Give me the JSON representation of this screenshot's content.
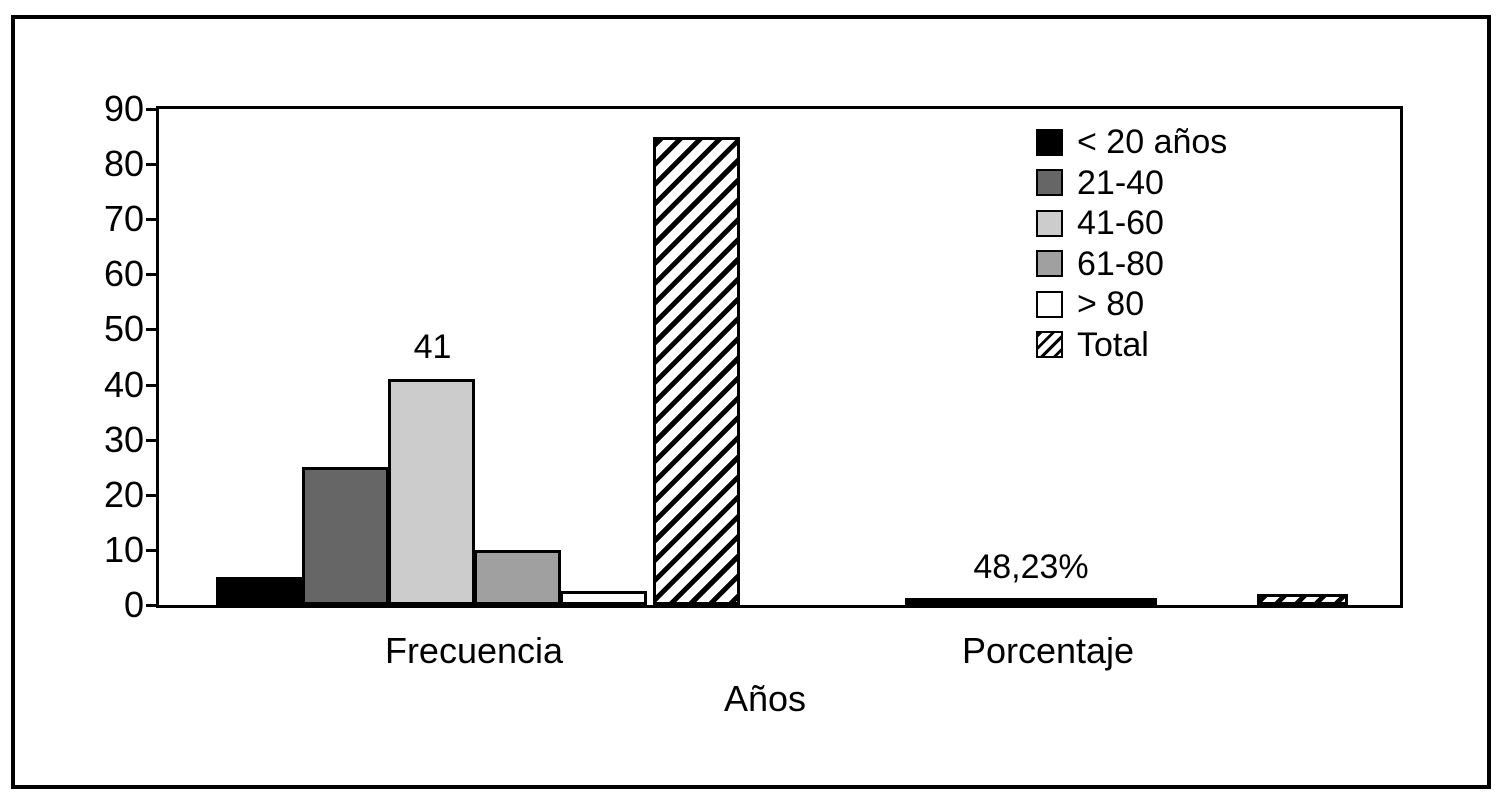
{
  "figure": {
    "background": "#ffffff",
    "border_color": "#000000"
  },
  "chart_data": {
    "type": "bar",
    "title": "",
    "xlabel": "Años",
    "ylabel": "",
    "ylim": [
      0,
      90
    ],
    "yticks": [
      0,
      10,
      20,
      30,
      40,
      50,
      60,
      70,
      80,
      90
    ],
    "grid": false,
    "plot_border": true,
    "legend_position": "top-right-inside",
    "groups": [
      "Frecuencia",
      "Porcentaje"
    ],
    "legend": [
      {
        "label": "< 20 años",
        "color": "#000000",
        "hatch": false
      },
      {
        "label": "21-40",
        "color": "#666666",
        "hatch": false
      },
      {
        "label": "41-60",
        "color": "#cccccc",
        "hatch": false
      },
      {
        "label": "61-80",
        "color": "#a0a0a0",
        "hatch": false
      },
      {
        "label": "> 80",
        "color": "#ffffff",
        "hatch": false
      },
      {
        "label": "Total",
        "color": "#ffffff",
        "hatch": true
      }
    ],
    "frecuencia": {
      "categories": [
        "< 20 años",
        "21-40",
        "41-60",
        "61-80",
        "> 80",
        "Total"
      ],
      "values": [
        5,
        25,
        41,
        10,
        2.5,
        85
      ],
      "data_label": {
        "text": "41",
        "series_index": 2
      }
    },
    "porcentaje": {
      "merged_strip_value_approx": 1.3,
      "total_value_approx": 2,
      "data_label": {
        "text": "48,23%"
      },
      "strip_color": "#000000"
    }
  }
}
